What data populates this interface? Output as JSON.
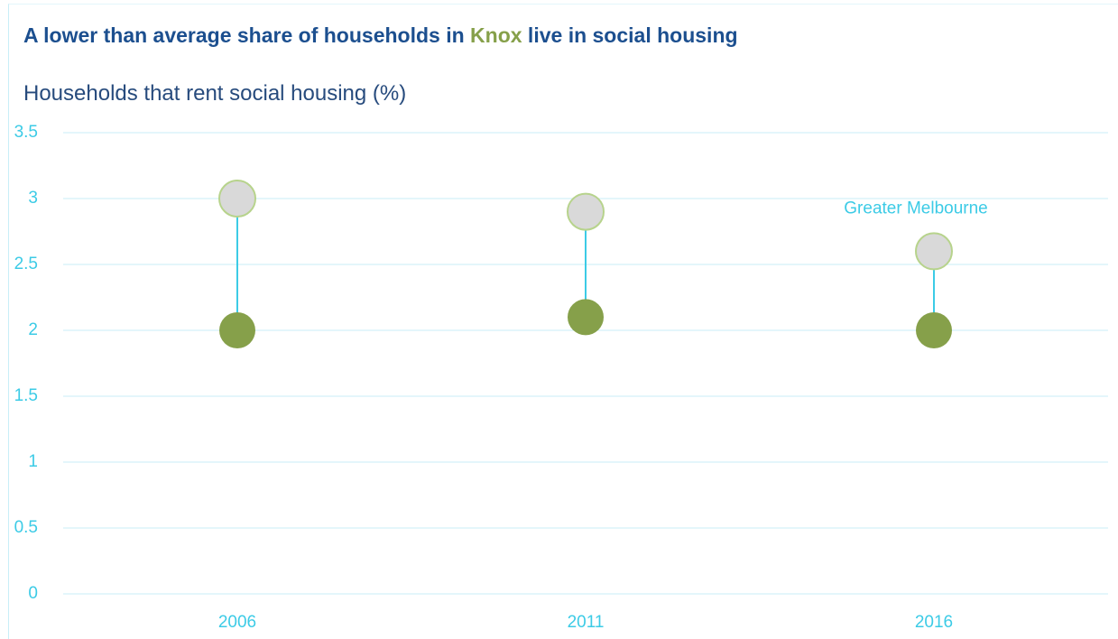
{
  "chart_data": {
    "type": "dumbbell",
    "title": [
      "A lower than average share of households in ",
      "Knox",
      " live in social housing"
    ],
    "subtitle": "Households that rent social housing (%)",
    "categories": [
      "2006",
      "2011",
      "2016"
    ],
    "series": [
      {
        "name": "Knox",
        "color": "#86a04a",
        "values": [
          2,
          2.1,
          2
        ]
      },
      {
        "name": "Greater Melbourne",
        "color": "#d9d9d9",
        "values": [
          3,
          2.9,
          2.6
        ]
      }
    ],
    "ylim": [
      0,
      3.5
    ],
    "yticks": [
      0,
      0.5,
      1,
      1.5,
      2,
      2.5,
      3,
      3.5
    ],
    "grid": true
  }
}
